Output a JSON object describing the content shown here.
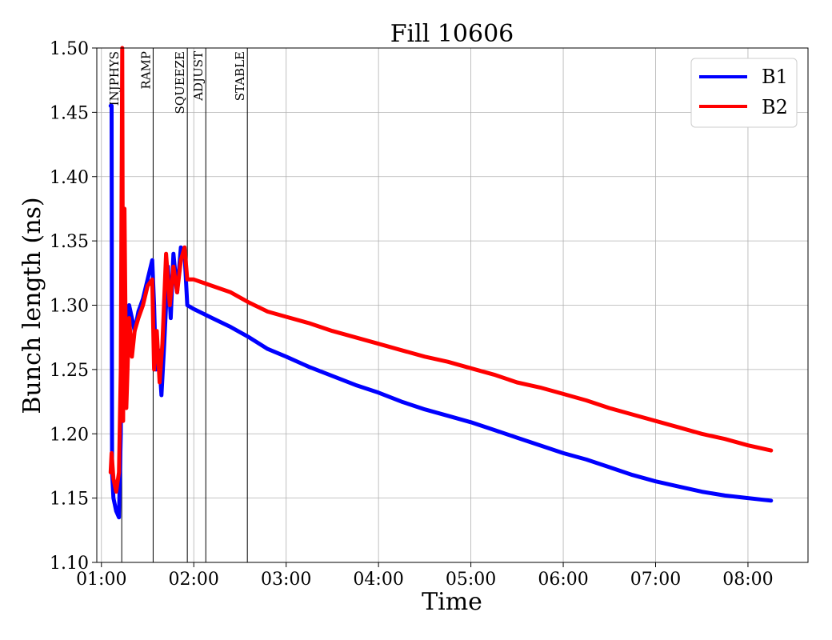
{
  "chart_data": {
    "type": "line",
    "title": "Fill 10606",
    "xlabel": "Time",
    "ylabel": "Bunch length (ns)",
    "x_unit": "hours",
    "xlim": [
      0.95,
      8.65
    ],
    "ylim": [
      1.1,
      1.5
    ],
    "y_ticks": [
      1.1,
      1.15,
      1.2,
      1.25,
      1.3,
      1.35,
      1.4,
      1.45,
      1.5
    ],
    "y_tick_labels": [
      "1.10",
      "1.15",
      "1.20",
      "1.25",
      "1.30",
      "1.35",
      "1.40",
      "1.45",
      "1.50"
    ],
    "x_ticks": [
      1,
      2,
      3,
      4,
      5,
      6,
      7,
      8
    ],
    "x_tick_labels": [
      "01:00",
      "02:00",
      "03:00",
      "04:00",
      "05:00",
      "06:00",
      "07:00",
      "08:00"
    ],
    "grid": true,
    "legend_position": "top-right",
    "phases": [
      {
        "label": "INJPHYS",
        "x": 1.22
      },
      {
        "label": "RAMP",
        "x": 1.56
      },
      {
        "label": "SQUEEZE",
        "x": 1.93
      },
      {
        "label": "ADJUST",
        "x": 2.13
      },
      {
        "label": "STABLE",
        "x": 2.58
      }
    ],
    "series": [
      {
        "name": "B1",
        "color": "#0000ff",
        "points": [
          [
            1.1,
            1.455
          ],
          [
            1.11,
            1.455
          ],
          [
            1.115,
            1.17
          ],
          [
            1.13,
            1.15
          ],
          [
            1.16,
            1.14
          ],
          [
            1.19,
            1.135
          ],
          [
            1.21,
            1.2
          ],
          [
            1.225,
            1.38
          ],
          [
            1.24,
            1.22
          ],
          [
            1.27,
            1.28
          ],
          [
            1.3,
            1.3
          ],
          [
            1.33,
            1.29
          ],
          [
            1.36,
            1.28
          ],
          [
            1.4,
            1.295
          ],
          [
            1.45,
            1.305
          ],
          [
            1.5,
            1.32
          ],
          [
            1.55,
            1.335
          ],
          [
            1.57,
            1.3
          ],
          [
            1.59,
            1.25
          ],
          [
            1.62,
            1.265
          ],
          [
            1.65,
            1.23
          ],
          [
            1.68,
            1.27
          ],
          [
            1.72,
            1.33
          ],
          [
            1.75,
            1.29
          ],
          [
            1.78,
            1.34
          ],
          [
            1.82,
            1.31
          ],
          [
            1.86,
            1.345
          ],
          [
            1.9,
            1.34
          ],
          [
            1.93,
            1.3
          ],
          [
            2.0,
            1.297
          ],
          [
            2.2,
            1.29
          ],
          [
            2.4,
            1.283
          ],
          [
            2.6,
            1.275
          ],
          [
            2.8,
            1.266
          ],
          [
            3.0,
            1.26
          ],
          [
            3.25,
            1.252
          ],
          [
            3.5,
            1.245
          ],
          [
            3.75,
            1.238
          ],
          [
            4.0,
            1.232
          ],
          [
            4.25,
            1.225
          ],
          [
            4.5,
            1.219
          ],
          [
            4.75,
            1.214
          ],
          [
            5.0,
            1.209
          ],
          [
            5.25,
            1.203
          ],
          [
            5.5,
            1.197
          ],
          [
            5.75,
            1.191
          ],
          [
            6.0,
            1.185
          ],
          [
            6.25,
            1.18
          ],
          [
            6.5,
            1.174
          ],
          [
            6.75,
            1.168
          ],
          [
            7.0,
            1.163
          ],
          [
            7.25,
            1.159
          ],
          [
            7.5,
            1.155
          ],
          [
            7.75,
            1.152
          ],
          [
            8.0,
            1.15
          ],
          [
            8.25,
            1.148
          ]
        ]
      },
      {
        "name": "B2",
        "color": "#ff0000",
        "points": [
          [
            1.1,
            1.17
          ],
          [
            1.11,
            1.185
          ],
          [
            1.13,
            1.165
          ],
          [
            1.16,
            1.155
          ],
          [
            1.19,
            1.17
          ],
          [
            1.21,
            1.25
          ],
          [
            1.225,
            1.5
          ],
          [
            1.235,
            1.21
          ],
          [
            1.25,
            1.375
          ],
          [
            1.27,
            1.22
          ],
          [
            1.3,
            1.29
          ],
          [
            1.33,
            1.26
          ],
          [
            1.36,
            1.28
          ],
          [
            1.4,
            1.29
          ],
          [
            1.45,
            1.3
          ],
          [
            1.5,
            1.315
          ],
          [
            1.55,
            1.32
          ],
          [
            1.57,
            1.25
          ],
          [
            1.6,
            1.28
          ],
          [
            1.63,
            1.24
          ],
          [
            1.66,
            1.27
          ],
          [
            1.7,
            1.34
          ],
          [
            1.74,
            1.3
          ],
          [
            1.78,
            1.33
          ],
          [
            1.82,
            1.31
          ],
          [
            1.86,
            1.335
          ],
          [
            1.9,
            1.345
          ],
          [
            1.93,
            1.32
          ],
          [
            2.0,
            1.32
          ],
          [
            2.2,
            1.315
          ],
          [
            2.4,
            1.31
          ],
          [
            2.6,
            1.302
          ],
          [
            2.8,
            1.295
          ],
          [
            3.0,
            1.291
          ],
          [
            3.25,
            1.286
          ],
          [
            3.5,
            1.28
          ],
          [
            3.75,
            1.275
          ],
          [
            4.0,
            1.27
          ],
          [
            4.25,
            1.265
          ],
          [
            4.5,
            1.26
          ],
          [
            4.75,
            1.256
          ],
          [
            5.0,
            1.251
          ],
          [
            5.25,
            1.246
          ],
          [
            5.5,
            1.24
          ],
          [
            5.75,
            1.236
          ],
          [
            6.0,
            1.231
          ],
          [
            6.25,
            1.226
          ],
          [
            6.5,
            1.22
          ],
          [
            6.75,
            1.215
          ],
          [
            7.0,
            1.21
          ],
          [
            7.25,
            1.205
          ],
          [
            7.5,
            1.2
          ],
          [
            7.75,
            1.196
          ],
          [
            8.0,
            1.191
          ],
          [
            8.25,
            1.187
          ]
        ]
      }
    ]
  }
}
